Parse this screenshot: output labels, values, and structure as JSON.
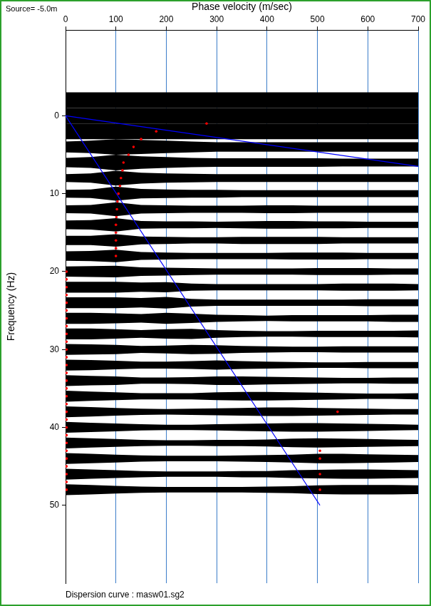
{
  "chart_data": {
    "type": "scatter",
    "x_label": "Phase velocity (m/sec)",
    "y_label": "Frequency (Hz)",
    "annotations": [
      "Source= -5.0m",
      "Dispersion curve : masw01.sg2"
    ],
    "xlim": [
      0,
      700
    ],
    "xticks": [
      0,
      100,
      200,
      300,
      400,
      500,
      600,
      700
    ],
    "ylim": [
      60,
      -11
    ],
    "yticks": [
      0,
      10,
      20,
      30,
      40,
      50
    ],
    "grid": "x",
    "traces": {
      "color": "#000000",
      "velocities": [
        0,
        50,
        100,
        150,
        200,
        250,
        300,
        350,
        400,
        450,
        500,
        550,
        600,
        650,
        700
      ],
      "frequencies": [
        -2,
        0,
        2,
        4,
        6,
        8,
        10,
        12,
        14,
        16,
        18,
        20,
        22,
        24,
        26,
        28,
        30,
        32,
        34,
        36,
        38,
        40,
        42,
        44,
        46,
        48
      ],
      "amplitudes": [
        [
          1,
          1,
          1,
          1,
          1,
          1,
          1,
          1,
          1,
          1,
          1,
          1,
          1,
          1,
          1
        ],
        [
          1,
          1,
          1,
          1,
          1,
          1,
          1,
          1,
          1,
          1,
          1,
          1,
          1,
          1,
          1
        ],
        [
          1,
          1,
          1,
          1,
          1,
          1,
          1,
          1,
          1,
          1,
          1,
          1,
          1,
          1,
          1
        ],
        [
          0.7,
          0.8,
          1,
          0.9,
          0.8,
          0.7,
          0.6,
          0.6,
          0.6,
          0.6,
          0.6,
          0.6,
          0.6,
          0.6,
          0.6
        ],
        [
          0.6,
          0.7,
          1,
          0.8,
          0.7,
          0.6,
          0.55,
          0.55,
          0.55,
          0.55,
          0.55,
          0.5,
          0.5,
          0.5,
          0.5
        ],
        [
          0.5,
          0.6,
          0.95,
          0.7,
          0.6,
          0.55,
          0.5,
          0.5,
          0.5,
          0.5,
          0.5,
          0.5,
          0.5,
          0.5,
          0.5
        ],
        [
          0.5,
          0.55,
          0.9,
          0.6,
          0.55,
          0.5,
          0.5,
          0.45,
          0.45,
          0.45,
          0.45,
          0.45,
          0.45,
          0.45,
          0.45
        ],
        [
          0.5,
          0.55,
          0.9,
          0.55,
          0.5,
          0.45,
          0.45,
          0.45,
          0.5,
          0.5,
          0.45,
          0.45,
          0.45,
          0.45,
          0.45
        ],
        [
          0.55,
          0.6,
          0.85,
          0.5,
          0.45,
          0.45,
          0.4,
          0.45,
          0.5,
          0.5,
          0.45,
          0.45,
          0.4,
          0.4,
          0.4
        ],
        [
          0.6,
          0.6,
          0.8,
          0.5,
          0.45,
          0.4,
          0.4,
          0.45,
          0.45,
          0.45,
          0.45,
          0.4,
          0.4,
          0.4,
          0.4
        ],
        [
          0.6,
          0.65,
          0.8,
          0.5,
          0.45,
          0.4,
          0.4,
          0.4,
          0.4,
          0.45,
          0.45,
          0.45,
          0.4,
          0.4,
          0.4
        ],
        [
          0.65,
          0.7,
          0.75,
          0.55,
          0.5,
          0.45,
          0.4,
          0.4,
          0.4,
          0.4,
          0.45,
          0.45,
          0.45,
          0.4,
          0.4
        ],
        [
          0.7,
          0.7,
          0.7,
          0.6,
          0.65,
          0.45,
          0.4,
          0.4,
          0.4,
          0.4,
          0.4,
          0.45,
          0.45,
          0.45,
          0.4
        ],
        [
          0.7,
          0.7,
          0.7,
          0.6,
          0.75,
          0.5,
          0.4,
          0.4,
          0.4,
          0.4,
          0.4,
          0.4,
          0.45,
          0.45,
          0.45
        ],
        [
          0.7,
          0.7,
          0.65,
          0.55,
          0.7,
          0.6,
          0.45,
          0.4,
          0.35,
          0.4,
          0.4,
          0.4,
          0.4,
          0.45,
          0.45
        ],
        [
          0.7,
          0.7,
          0.6,
          0.5,
          0.6,
          0.65,
          0.5,
          0.4,
          0.35,
          0.35,
          0.4,
          0.4,
          0.4,
          0.4,
          0.45
        ],
        [
          0.7,
          0.65,
          0.6,
          0.45,
          0.5,
          0.6,
          0.55,
          0.45,
          0.4,
          0.35,
          0.35,
          0.4,
          0.4,
          0.4,
          0.4
        ],
        [
          0.7,
          0.65,
          0.55,
          0.45,
          0.45,
          0.5,
          0.6,
          0.5,
          0.45,
          0.4,
          0.35,
          0.35,
          0.4,
          0.4,
          0.4
        ],
        [
          0.7,
          0.6,
          0.55,
          0.4,
          0.4,
          0.45,
          0.55,
          0.55,
          0.5,
          0.45,
          0.4,
          0.35,
          0.35,
          0.4,
          0.4
        ],
        [
          0.7,
          0.6,
          0.5,
          0.4,
          0.4,
          0.4,
          0.5,
          0.55,
          0.55,
          0.5,
          0.45,
          0.4,
          0.35,
          0.35,
          0.4
        ],
        [
          0.7,
          0.6,
          0.5,
          0.4,
          0.35,
          0.4,
          0.45,
          0.5,
          0.55,
          0.55,
          0.5,
          0.45,
          0.4,
          0.35,
          0.35
        ],
        [
          0.7,
          0.6,
          0.5,
          0.4,
          0.35,
          0.35,
          0.4,
          0.45,
          0.5,
          0.55,
          0.55,
          0.5,
          0.45,
          0.4,
          0.35
        ],
        [
          0.7,
          0.6,
          0.5,
          0.4,
          0.35,
          0.35,
          0.4,
          0.4,
          0.45,
          0.55,
          0.6,
          0.55,
          0.5,
          0.45,
          0.4
        ],
        [
          0.7,
          0.6,
          0.5,
          0.4,
          0.35,
          0.35,
          0.35,
          0.4,
          0.45,
          0.5,
          0.6,
          0.6,
          0.55,
          0.5,
          0.45
        ],
        [
          0.7,
          0.6,
          0.5,
          0.4,
          0.35,
          0.35,
          0.35,
          0.4,
          0.4,
          0.5,
          0.55,
          0.6,
          0.6,
          0.55,
          0.5
        ],
        [
          0.7,
          0.6,
          0.5,
          0.4,
          0.35,
          0.35,
          0.35,
          0.35,
          0.4,
          0.45,
          0.55,
          0.6,
          0.6,
          0.6,
          0.55
        ]
      ]
    },
    "series": [
      {
        "type": "scatter",
        "color": "#ff0000",
        "marker": "circle",
        "x": [
          280,
          180,
          150,
          135,
          125,
          115,
          113,
          110,
          108,
          105,
          103,
          102,
          101,
          100,
          100,
          100,
          100,
          100,
          2,
          2,
          2,
          2,
          2,
          2,
          2,
          2,
          2,
          2,
          2,
          2,
          2,
          2,
          2,
          2,
          2,
          2,
          2,
          2,
          2,
          2,
          2,
          2,
          2,
          2,
          2,
          2,
          2,
          540,
          505,
          505,
          505,
          505
        ],
        "values": [
          1,
          2,
          3,
          4,
          5,
          6,
          7,
          8,
          9,
          10,
          11,
          12,
          13,
          14,
          15,
          16,
          17,
          18,
          20,
          21,
          22,
          23,
          24,
          25,
          26,
          27,
          28,
          29,
          30,
          31,
          32,
          33,
          34,
          35,
          36,
          37,
          38,
          39,
          40,
          41,
          42,
          43,
          44,
          45,
          46,
          47,
          48,
          38,
          43,
          44,
          46,
          48
        ]
      },
      {
        "type": "line",
        "color": "#0000ff",
        "line_style": "solid",
        "x": [
          0,
          700
        ],
        "values": [
          0,
          6.5
        ]
      },
      {
        "type": "line",
        "color": "#0000ff",
        "line_style": "solid",
        "x": [
          0,
          505
        ],
        "values": [
          0,
          50
        ]
      }
    ]
  }
}
